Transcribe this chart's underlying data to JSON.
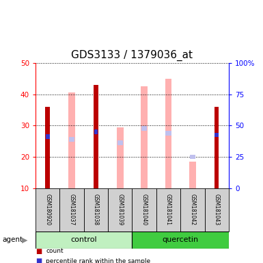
{
  "title": "GDS3133 / 1379036_at",
  "samples": [
    "GSM180920",
    "GSM181037",
    "GSM181038",
    "GSM181039",
    "GSM181040",
    "GSM181041",
    "GSM181042",
    "GSM181043"
  ],
  "count": [
    36,
    null,
    43,
    null,
    null,
    null,
    null,
    36
  ],
  "percentile_rank": [
    26.5,
    null,
    28.0,
    null,
    null,
    null,
    null,
    27.0
  ],
  "absent_value": [
    null,
    40.5,
    null,
    29.5,
    42.5,
    45.0,
    18.5,
    null
  ],
  "absent_rank": [
    null,
    25.5,
    null,
    24.5,
    29.0,
    27.5,
    20.0,
    null
  ],
  "ylim_left": [
    10,
    50
  ],
  "ylim_right": [
    0,
    100
  ],
  "yticks_left": [
    10,
    20,
    30,
    40,
    50
  ],
  "yticks_right": [
    0,
    25,
    50,
    75,
    100
  ],
  "ytick_labels_right": [
    "0",
    "25",
    "50",
    "75",
    "100%"
  ],
  "color_count": "#bb0000",
  "color_rank": "#3333cc",
  "color_absent_value": "#ffb0b0",
  "color_absent_rank": "#c0c0ee",
  "color_control_bg": "#c0f0c0",
  "color_quercetin_bg": "#40cc40",
  "color_sample_bg": "#d0d0d0",
  "title_fontsize": 11
}
